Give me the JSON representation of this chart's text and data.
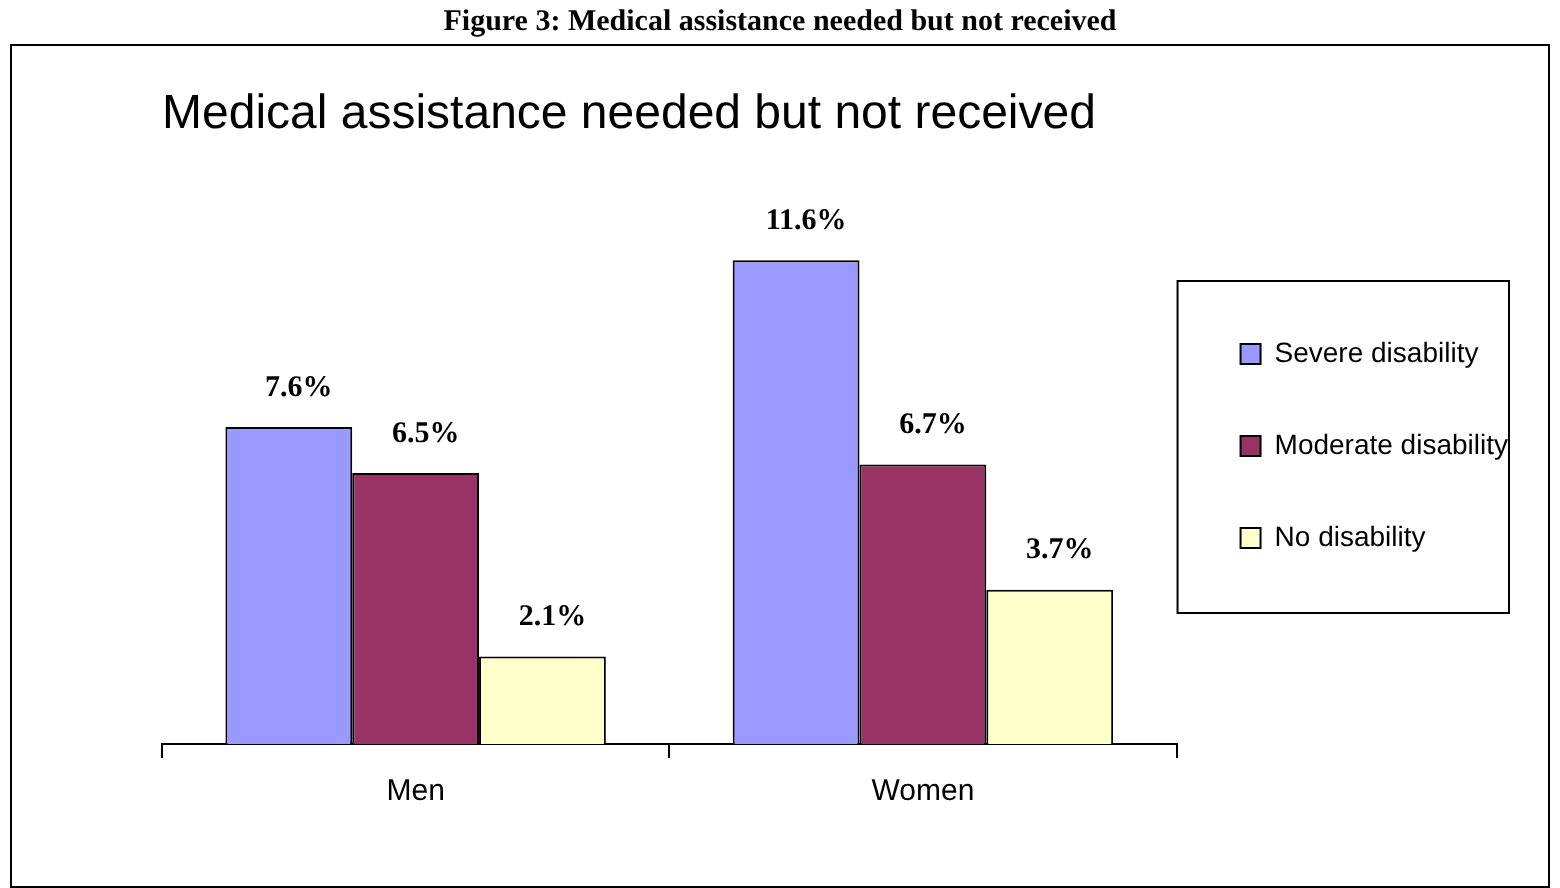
{
  "chart_data": {
    "type": "bar",
    "title": "Figure 3: Medical assistance needed but not received",
    "subtitle": "Medical assistance needed but not received",
    "categories": [
      "Men",
      "Women"
    ],
    "series": [
      {
        "name": "Severe disability",
        "color": "#9999ff",
        "values": [
          7.6,
          11.6
        ],
        "value_labels": [
          "7.6%",
          "11.6%"
        ]
      },
      {
        "name": "Moderate disability",
        "color": "#993366",
        "values": [
          6.5,
          6.7
        ],
        "value_labels": [
          "6.5%",
          "6.7%"
        ]
      },
      {
        "name": "No disability",
        "color": "#ffffcc",
        "values": [
          2.1,
          3.7
        ],
        "value_labels": [
          "2.1%",
          "3.7%"
        ]
      }
    ],
    "legend": "right",
    "tick_labels": "x"
  }
}
